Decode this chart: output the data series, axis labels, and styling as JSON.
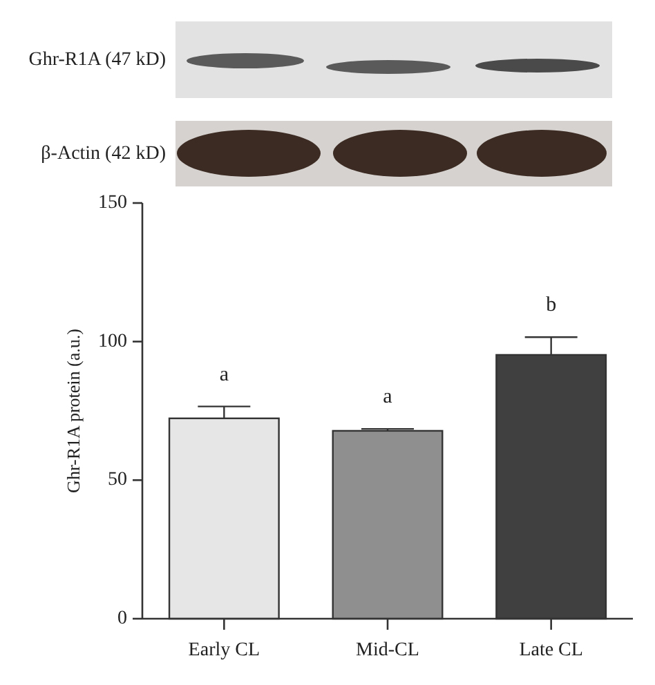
{
  "chart_data": {
    "type": "bar",
    "categories": [
      "Early CL",
      "Mid-CL",
      "Late CL"
    ],
    "values": [
      72.3,
      67.8,
      95.2
    ],
    "colors": [
      "#e6e6e6",
      "#8f8f8f",
      "#404040"
    ],
    "errors": [
      4.3,
      0.7,
      6.4
    ],
    "ylabel": "Ghr-R1A protein (a.u.)",
    "ylim": [
      0,
      150
    ],
    "yticks": [
      0,
      50,
      100,
      150
    ],
    "annotations": [
      "Ghr-R1A (47 kD)",
      "β-Actin (42 kD)",
      "a",
      "a",
      "b"
    ]
  }
}
